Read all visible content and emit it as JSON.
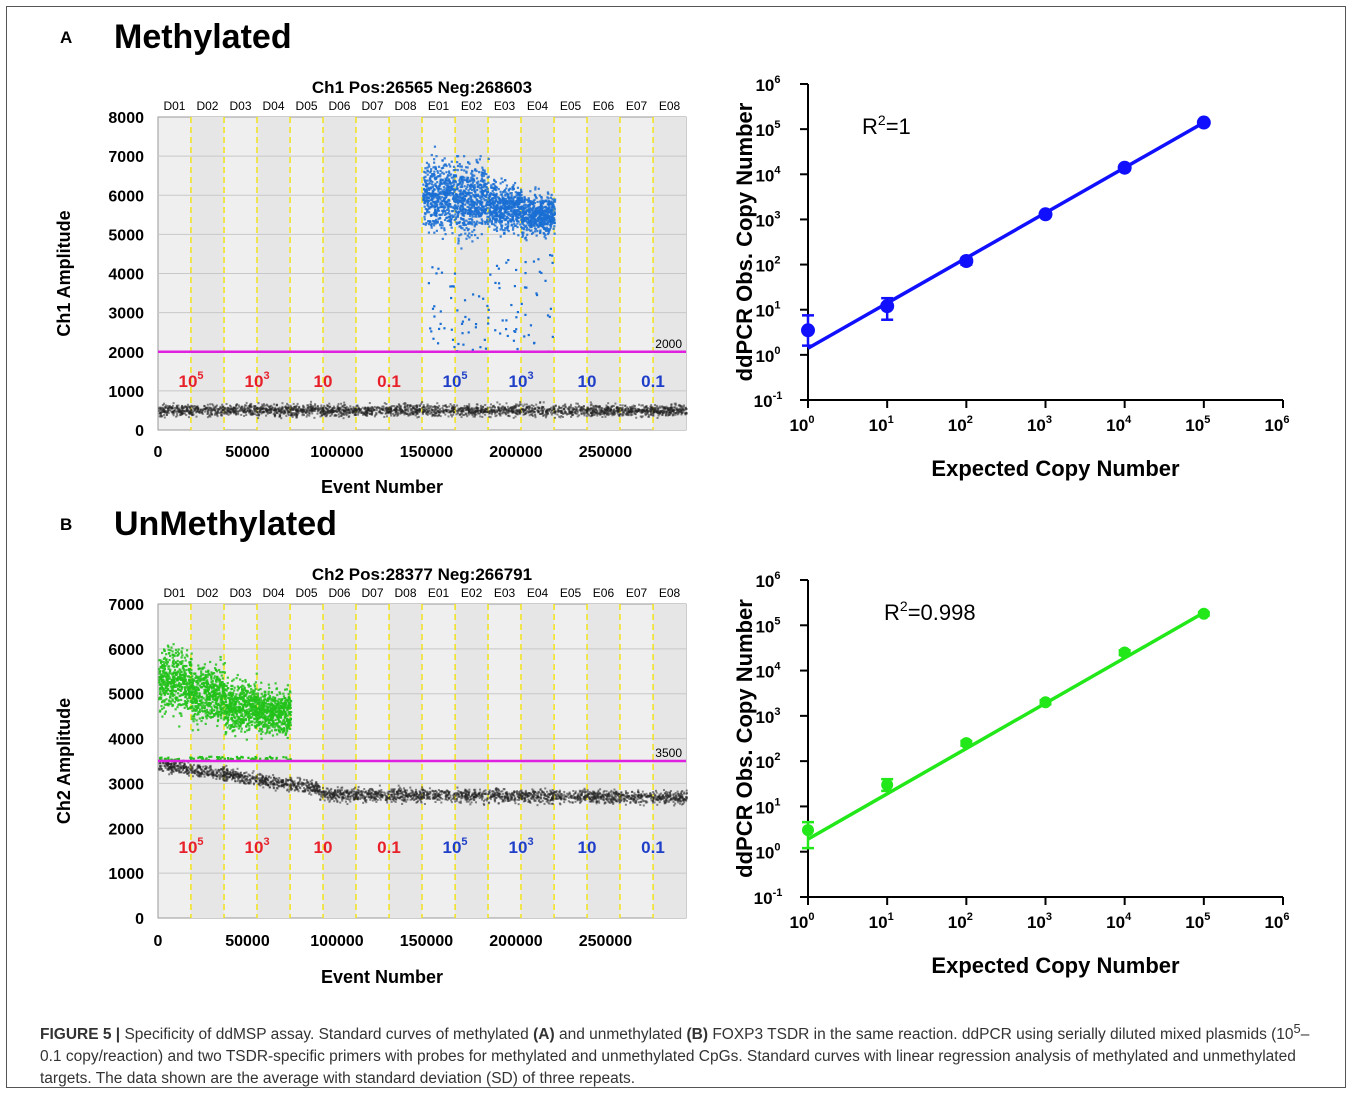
{
  "panels": [
    {
      "letter": "A",
      "heading": "Methylated",
      "scatter": {
        "title": "Ch1 Pos:26565 Neg:268603",
        "ylabel": "Ch1 Amplitude",
        "xlabel": "Event Number",
        "wells": [
          "D01",
          "D02",
          "D03",
          "D04",
          "D05",
          "D06",
          "D07",
          "D08",
          "E01",
          "E02",
          "E03",
          "E04",
          "E05",
          "E06",
          "E07",
          "E08"
        ],
        "threshold_label": "2000",
        "dilution_labels": [
          {
            "text": "10",
            "sup": "5",
            "color": "#e8202a"
          },
          {
            "text": "10",
            "sup": "3",
            "color": "#e8202a"
          },
          {
            "text": "10",
            "sup": "",
            "color": "#e8202a"
          },
          {
            "text": "0.1",
            "sup": "",
            "color": "#e8202a"
          },
          {
            "text": "10",
            "sup": "5",
            "color": "#1f3fc8"
          },
          {
            "text": "10",
            "sup": "3",
            "color": "#1f3fc8"
          },
          {
            "text": "10",
            "sup": "",
            "color": "#1f3fc8"
          },
          {
            "text": "0.1",
            "sup": "",
            "color": "#1f3fc8"
          }
        ]
      },
      "curve": {
        "ylabel": "ddPCR Obs. Copy Number",
        "xlabel": "Expected Copy Number",
        "r2_prefix": "R",
        "r2_sup": "2",
        "r2_value": "=1"
      }
    },
    {
      "letter": "B",
      "heading": "UnMethylated",
      "scatter": {
        "title": "Ch2 Pos:28377 Neg:266791",
        "ylabel": "Ch2 Amplitude",
        "xlabel": "Event Number",
        "wells": [
          "D01",
          "D02",
          "D03",
          "D04",
          "D05",
          "D06",
          "D07",
          "D08",
          "E01",
          "E02",
          "E03",
          "E04",
          "E05",
          "E06",
          "E07",
          "E08"
        ],
        "threshold_label": "3500",
        "dilution_labels": [
          {
            "text": "10",
            "sup": "5",
            "color": "#e8202a"
          },
          {
            "text": "10",
            "sup": "3",
            "color": "#e8202a"
          },
          {
            "text": "10",
            "sup": "",
            "color": "#e8202a"
          },
          {
            "text": "0.1",
            "sup": "",
            "color": "#e8202a"
          },
          {
            "text": "10",
            "sup": "5",
            "color": "#1f3fc8"
          },
          {
            "text": "10",
            "sup": "3",
            "color": "#1f3fc8"
          },
          {
            "text": "10",
            "sup": "",
            "color": "#1f3fc8"
          },
          {
            "text": "0.1",
            "sup": "",
            "color": "#1f3fc8"
          }
        ]
      },
      "curve": {
        "ylabel": "ddPCR Obs. Copy Number",
        "xlabel": "Expected Copy Number",
        "r2_prefix": "R",
        "r2_sup": "2",
        "r2_value": "=0.998"
      }
    }
  ],
  "caption": {
    "label": "FIGURE 5 |",
    "t1": " Specificity of ddMSP assay. Standard curves of methylated ",
    "a": "(A)",
    "t2": " and unmethylated ",
    "b": "(B)",
    "t3": " FOXP3 TSDR in the same reaction. ddPCR using serially diluted mixed plasmids (10",
    "sup": "5",
    "t4": "–0.1 copy/reaction) and two TSDR-specific primers with probes for methylated and unmethylated CpGs. Standard curves with linear regression analysis of methylated and unmethylated targets. The data shown are the average with standard deviation (SD) of three repeats."
  },
  "chart_data": [
    {
      "type": "scatter",
      "title": "Ch1 Pos:26565 Neg:268603",
      "xlabel": "Event Number",
      "ylabel": "Ch1 Amplitude",
      "xlim": [
        0,
        295000
      ],
      "ylim": [
        0,
        8000
      ],
      "xticks": [
        0,
        50000,
        100000,
        150000,
        200000,
        250000
      ],
      "yticks": [
        0,
        1000,
        2000,
        3000,
        4000,
        5000,
        6000,
        7000,
        8000
      ],
      "threshold": 2000,
      "threshold_color": "#e020e0",
      "well_boundaries": [
        18400,
        36900,
        55300,
        73800,
        92200,
        110600,
        129100,
        147500,
        166000,
        184400,
        202800,
        221300,
        239700,
        258100,
        276600
      ],
      "positive_color": "#1a6fd4",
      "negative_color": "#222222",
      "negative_band_mean": 500,
      "positive_clusters": [
        {
          "well": "E01",
          "amplitude_center": 6000,
          "amplitude_range": [
            4200,
            7400
          ]
        },
        {
          "well": "E02",
          "amplitude_center": 5900,
          "amplitude_range": [
            3500,
            7000
          ]
        },
        {
          "well": "E03",
          "amplitude_center": 5700,
          "amplitude_range": [
            4400,
            6700
          ]
        },
        {
          "well": "E04",
          "amplitude_center": 5500,
          "amplitude_range": [
            4500,
            6400
          ]
        }
      ],
      "grid": true
    },
    {
      "type": "line",
      "xlabel": "Expected Copy Number",
      "ylabel": "ddPCR Obs. Copy Number",
      "xscale": "log",
      "yscale": "log",
      "xlim": [
        1,
        1000000
      ],
      "ylim": [
        0.1,
        1000000
      ],
      "annotation": "R2=1",
      "series": [
        {
          "x": [
            1,
            10,
            100,
            1000,
            10000,
            100000
          ],
          "y": [
            3.5,
            12,
            120,
            1300,
            14000,
            140000
          ],
          "err_low": [
            1.6,
            6,
            100,
            1150,
            12500,
            128000
          ],
          "err_high": [
            7.5,
            18,
            140,
            1450,
            15500,
            152000
          ],
          "fit": {
            "x": [
              1,
              100000
            ],
            "y": [
              1.4,
              140000
            ]
          },
          "color": "#1010ff"
        }
      ],
      "grid": false
    },
    {
      "type": "scatter",
      "title": "Ch2 Pos:28377 Neg:266791",
      "xlabel": "Event Number",
      "ylabel": "Ch2 Amplitude",
      "xlim": [
        0,
        295000
      ],
      "ylim": [
        0,
        7000
      ],
      "xticks": [
        0,
        50000,
        100000,
        150000,
        200000,
        250000
      ],
      "yticks": [
        0,
        1000,
        2000,
        3000,
        4000,
        5000,
        6000,
        7000
      ],
      "threshold": 3500,
      "threshold_color": "#e020e0",
      "well_boundaries": [
        18400,
        36900,
        55300,
        73800,
        92200,
        110600,
        129100,
        147500,
        166000,
        184400,
        202800,
        221300,
        239700,
        258100,
        276600
      ],
      "positive_color": "#22c21a",
      "negative_color": "#222222",
      "negative_band_mean": 2800,
      "positive_clusters": [
        {
          "well": "D01",
          "amplitude_center": 5300,
          "amplitude_range": [
            3600,
            6200
          ]
        },
        {
          "well": "D02",
          "amplitude_center": 5000,
          "amplitude_range": [
            3600,
            5900
          ]
        },
        {
          "well": "D03",
          "amplitude_center": 4700,
          "amplitude_range": [
            3600,
            5600
          ]
        },
        {
          "well": "D04",
          "amplitude_center": 4600,
          "amplitude_range": [
            3600,
            5400
          ]
        }
      ],
      "grid": true
    },
    {
      "type": "line",
      "xlabel": "Expected Copy Number",
      "ylabel": "ddPCR Obs. Copy Number",
      "xscale": "log",
      "yscale": "log",
      "xlim": [
        1,
        1000000
      ],
      "ylim": [
        0.1,
        1000000
      ],
      "annotation": "R2=0.998",
      "series": [
        {
          "x": [
            1,
            10,
            100,
            1000,
            10000,
            100000
          ],
          "y": [
            3,
            30,
            250,
            2000,
            25000,
            180000
          ],
          "err_low": [
            1.2,
            22,
            220,
            1800,
            22000,
            165000
          ],
          "err_high": [
            4.5,
            40,
            280,
            2200,
            28000,
            195000
          ],
          "fit": {
            "x": [
              1,
              100000
            ],
            "y": [
              1.9,
              190000
            ]
          },
          "color": "#22e81a"
        }
      ],
      "grid": false
    }
  ]
}
